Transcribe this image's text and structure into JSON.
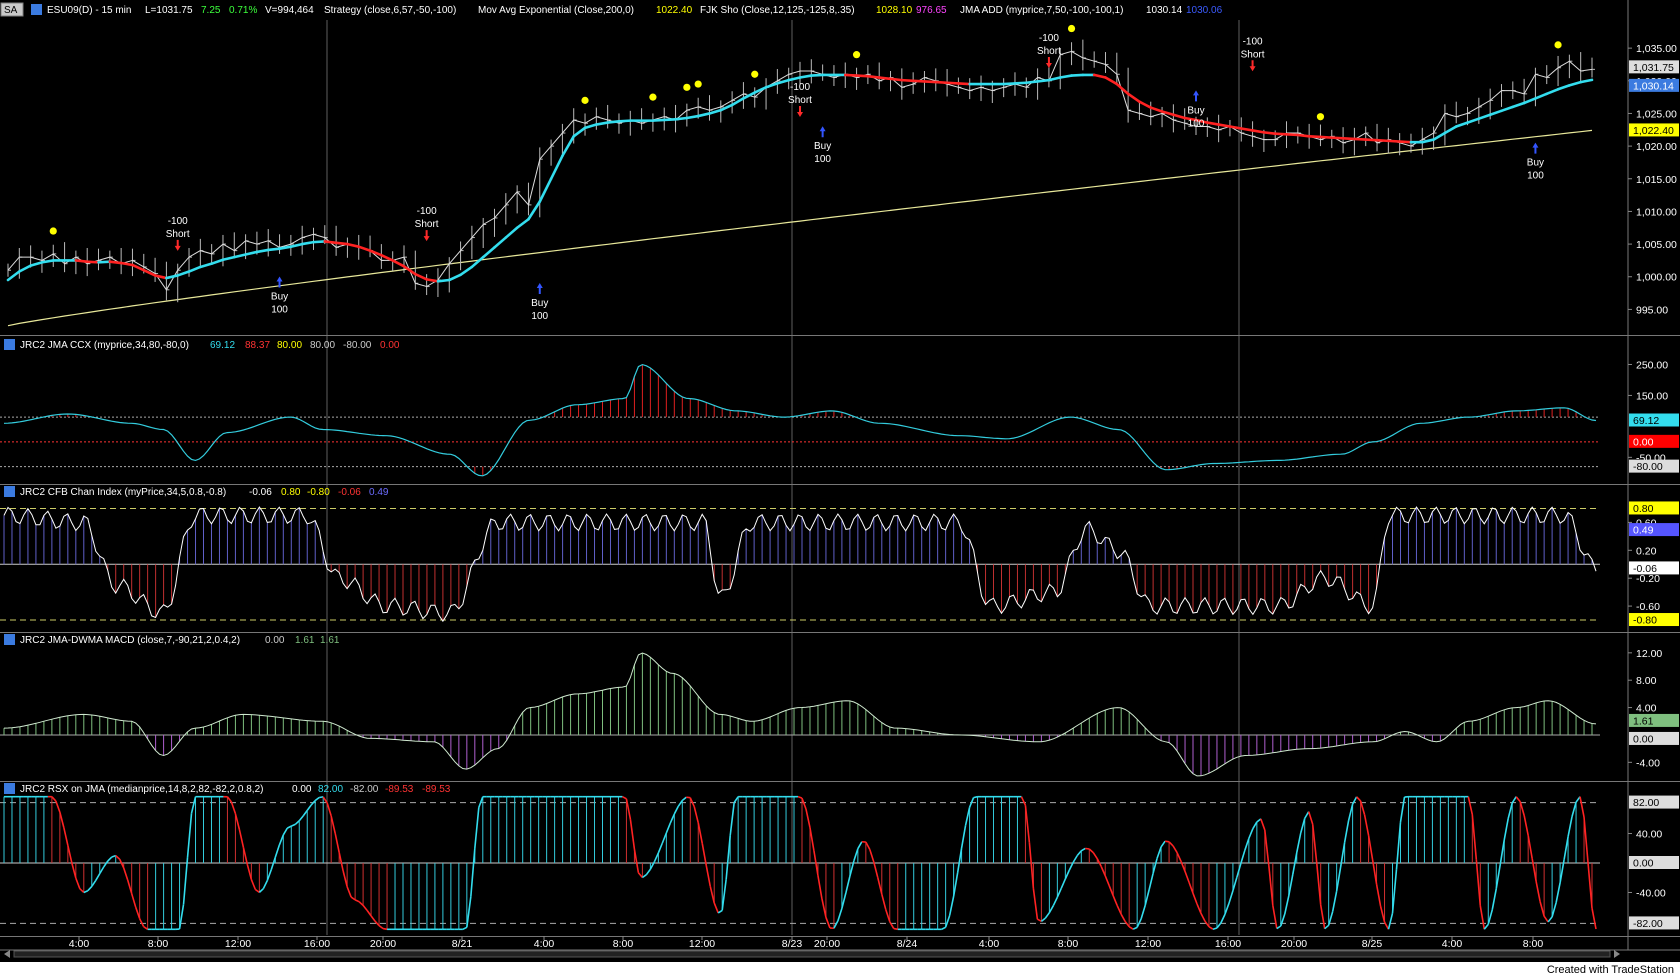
{
  "header": {
    "tag": "SA",
    "symbol": "ESU09(D) - 15 min",
    "last": "L=1031.75",
    "chg": "7.25",
    "pct": "0.71%",
    "vol": "V=994,464",
    "strategy": "Strategy (close,6,57,-50,-100)",
    "mavg": "Mov Avg Exponential (Close,200,0)",
    "mavg_val": "1022.40",
    "fjk": "FJK Sho (Close,12,125,-125,8,.35)",
    "fjk_v1": "1028.10",
    "fjk_v2": "976.65",
    "jma": "JMA ADD (myprice,7,50,-100,-100,1)",
    "jma_v1": "1030.14",
    "jma_v2": "1030.06"
  },
  "panes": {
    "ccx": {
      "title": "JRC2 JMA CCX (myprice,34,80,-80,0)",
      "v1": "69.12",
      "v2": "88.37",
      "v3": "80.00",
      "v4": "80.00",
      "v5": "-80.00",
      "v6": "0.00"
    },
    "cfb": {
      "title": "JRC2 CFB Chan Index (myPrice,34,5,0.8,-0.8)",
      "v1": "-0.06",
      "v2": "0.80",
      "v3": "-0.80",
      "v4": "-0.06",
      "v5": "0.49"
    },
    "macd": {
      "title": "JRC2 JMA-DWMA MACD (close,7,-90,21,2,0.4,2)",
      "v1": "0.00",
      "v2": "1.61",
      "v3": "1.61"
    },
    "rsx": {
      "title": "JRC2 RSX on JMA (medianprice,14,8,2,82,-82,2,0.8,2)",
      "v1": "0.00",
      "v2": "82.00",
      "v3": "-82.00",
      "v4": "-89.53",
      "v5": "-89.53"
    }
  },
  "axes": {
    "price_ticks": [
      "1,035.00",
      "1,030.00",
      "1,025.00",
      "1,020.00",
      "1,015.00",
      "1,010.00",
      "1,005.00",
      "1,000.00",
      "995.00"
    ],
    "price_tags": [
      {
        "text": "1,031.75",
        "color": "#dddddd",
        "fg": "#000000"
      },
      {
        "text": "1,030.14",
        "color": "#3b7be0",
        "fg": "#ffffff"
      },
      {
        "text": "1,022.40",
        "color": "#ffff00",
        "fg": "#000000"
      }
    ],
    "ccx_ticks": [
      "250.00",
      "150.00",
      "-50.00"
    ],
    "ccx_tags": [
      {
        "text": "69.12",
        "color": "#33ddee",
        "fg": "#000000"
      },
      {
        "text": "0.00",
        "color": "#ff0000",
        "fg": "#ffffff"
      },
      {
        "text": "-80.00",
        "color": "#dddddd",
        "fg": "#000000"
      }
    ],
    "cfb_ticks": [
      "0.60",
      "0.20",
      "-0.20",
      "-0.60"
    ],
    "cfb_tags": [
      {
        "text": "0.80",
        "color": "#ffff00",
        "fg": "#000000"
      },
      {
        "text": "0.49",
        "color": "#5555ff",
        "fg": "#ffffff"
      },
      {
        "text": "-0.06",
        "color": "#ffffff",
        "fg": "#000000"
      },
      {
        "text": "-0.80",
        "color": "#ffff00",
        "fg": "#000000"
      }
    ],
    "macd_ticks": [
      "12.00",
      "8.00",
      "4.00",
      "-4.00"
    ],
    "macd_tags": [
      {
        "text": "1.61",
        "color": "#7fbf7f",
        "fg": "#000000"
      },
      {
        "text": "0.00",
        "color": "#dddddd",
        "fg": "#000000"
      }
    ],
    "rsx_ticks": [
      "40.00",
      "-40.00"
    ],
    "rsx_tags": [
      {
        "text": "82.00",
        "color": "#dddddd",
        "fg": "#000000"
      },
      {
        "text": "0.00",
        "color": "#dddddd",
        "fg": "#000000"
      },
      {
        "text": "-82.00",
        "color": "#dddddd",
        "fg": "#000000"
      }
    ],
    "time_ticks": [
      "4:00",
      "8:00",
      "12:00",
      "16:00",
      "20:00",
      "8/21",
      "4:00",
      "8:00",
      "12:00",
      "8/23",
      "20:00",
      "8/24",
      "4:00",
      "8:00",
      "12:00",
      "16:00",
      "20:00",
      "8/25",
      "4:00",
      "8:00"
    ]
  },
  "chart_data": {
    "type": "line",
    "x_label": "",
    "price_ylim": [
      992,
      1039
    ],
    "price_close": [
      1001,
      1003,
      1003,
      1002.5,
      1003.5,
      1002,
      1003,
      1002,
      1002.5,
      1003,
      1002,
      1002.5,
      1001.5,
      1000.5,
      998,
      1001,
      1003,
      1004,
      1003.5,
      1005,
      1004,
      1005.5,
      1005,
      1005.5,
      1004.5,
      1005,
      1006,
      1006.5,
      1006,
      1004.5,
      1005,
      1004.5,
      1004,
      1002.5,
      1002.5,
      1003,
      999,
      998.5,
      999.5,
      1002,
      1004,
      1006,
      1008,
      1009,
      1011,
      1013,
      1011,
      1018,
      1020,
      1022,
      1024,
      1023.5,
      1024.5,
      1024,
      1023.5,
      1024,
      1023.5,
      1024,
      1024.5,
      1024,
      1025.5,
      1026,
      1025.5,
      1026,
      1027,
      1028,
      1027.5,
      1029,
      1030,
      1031,
      1031.5,
      1031.5,
      1031,
      1030.5,
      1031,
      1030.5,
      1031,
      1030,
      1030.5,
      1029,
      1029.5,
      1030.5,
      1030,
      1029.5,
      1029,
      1028.5,
      1029,
      1028.5,
      1029,
      1029.5,
      1029,
      1030.5,
      1030,
      1034,
      1034.5,
      1033.5,
      1033,
      1032.5,
      1031,
      1025.5,
      1025,
      1024.5,
      1025,
      1024,
      1023.5,
      1023,
      1023,
      1022.5,
      1023,
      1022,
      1021.5,
      1021,
      1021,
      1022,
      1022,
      1021.5,
      1021,
      1021.5,
      1020.5,
      1021,
      1022,
      1020.5,
      1021,
      1020.5,
      1020,
      1021,
      1022,
      1025,
      1024.5,
      1025,
      1026,
      1027,
      1028.5,
      1028.5,
      1028,
      1031,
      1030.5,
      1032,
      1033,
      1031.5,
      1031.75
    ],
    "series": [
      {
        "name": "JMA ADD",
        "values": [
          999.5,
          1000.8,
          1001.7,
          1002.2,
          1002.5,
          1002.5,
          1002.5,
          1002.3,
          1002.2,
          1002.3,
          1002.1,
          1001.8,
          1001.0,
          1000.2,
          999.8,
          1000.2,
          1000.8,
          1001.5,
          1002.0,
          1002.6,
          1003.0,
          1003.4,
          1003.8,
          1004.1,
          1004.3,
          1004.6,
          1005.0,
          1005.3,
          1005.4,
          1005.2,
          1005.0,
          1004.6,
          1004.0,
          1003.3,
          1002.5,
          1001.6,
          1000.4,
          999.6,
          999.3,
          999.5,
          1000.3,
          1001.5,
          1003.0,
          1004.5,
          1006.0,
          1007.5,
          1008.8,
          1011.5,
          1015.0,
          1018.5,
          1021.5,
          1022.8,
          1023.3,
          1023.6,
          1023.8,
          1023.9,
          1023.9,
          1023.9,
          1024.0,
          1024.1,
          1024.3,
          1024.6,
          1025.0,
          1025.5,
          1026.3,
          1027.3,
          1028.2,
          1029.0,
          1029.6,
          1030.1,
          1030.5,
          1030.8,
          1030.9,
          1030.9,
          1030.9,
          1030.8,
          1030.7,
          1030.5,
          1030.3,
          1030.1,
          1030.0,
          1029.9,
          1029.8,
          1029.7,
          1029.6,
          1029.5,
          1029.5,
          1029.5,
          1029.5,
          1029.6,
          1029.7,
          1029.9,
          1030.1,
          1030.5,
          1030.8,
          1030.9,
          1030.9,
          1030.5,
          1029.5,
          1028.0,
          1026.8,
          1025.9,
          1025.3,
          1024.8,
          1024.3,
          1024.0,
          1023.6,
          1023.3,
          1023.0,
          1022.7,
          1022.4,
          1022.1,
          1021.9,
          1021.8,
          1021.7,
          1021.5,
          1021.4,
          1021.3,
          1021.2,
          1021.1,
          1021.0,
          1020.9,
          1020.8,
          1020.7,
          1020.6,
          1020.6,
          1021.0,
          1022.0,
          1023.0,
          1023.6,
          1024.2,
          1024.8,
          1025.4,
          1026.0,
          1026.6,
          1027.3,
          1028.0,
          1028.7,
          1029.3,
          1029.8,
          1030.14
        ]
      },
      {
        "name": "Mov Avg Exponential",
        "values": [
          992.5,
          1022.4
        ]
      }
    ],
    "trades": [
      {
        "label": "-100 Short",
        "idx": 15,
        "price": 1003.5
      },
      {
        "label": "Buy 100",
        "idx": 24,
        "price": 1000.5
      },
      {
        "label": "-100 Short",
        "idx": 37,
        "price": 1005.0
      },
      {
        "label": "Buy 100",
        "idx": 47,
        "price": 999.5
      },
      {
        "label": "-100 Short",
        "idx": 70,
        "price": 1024.0
      },
      {
        "label": "Buy 100",
        "idx": 72,
        "price": 1023.5
      },
      {
        "label": "-100 Short",
        "idx": 92,
        "price": 1031.5
      },
      {
        "label": "Buy 100",
        "idx": 105,
        "price": 1029.0
      },
      {
        "label": "-100 Short",
        "idx": 110,
        "price": 1031.0
      },
      {
        "label": "Buy 100",
        "idx": 135,
        "price": 1021.0
      }
    ]
  }
}
